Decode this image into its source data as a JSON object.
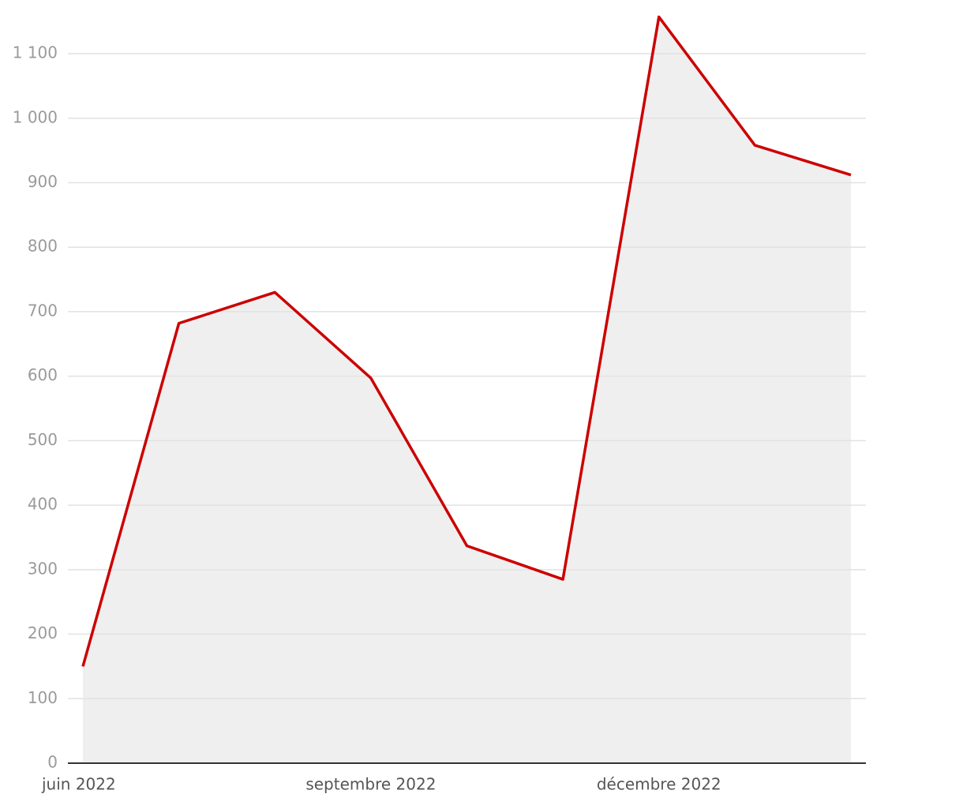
{
  "chart_data": {
    "type": "line",
    "categories": [
      "juin 2022",
      null,
      null,
      "septembre 2022",
      null,
      null,
      "décembre 2022",
      null,
      null
    ],
    "series": [
      {
        "color": "#cc0000",
        "values": [
          150,
          682,
          730,
          597,
          337,
          285,
          1157,
          958,
          912
        ]
      }
    ],
    "area_color": "#efefef",
    "ylim": [
      0,
      1160
    ],
    "yticks": [
      0,
      100,
      200,
      300,
      400,
      500,
      600,
      700,
      800,
      900,
      {
        "value": 1000,
        "label": "1 000"
      },
      {
        "value": 1100,
        "label": "1 100"
      }
    ],
    "grid": true
  }
}
